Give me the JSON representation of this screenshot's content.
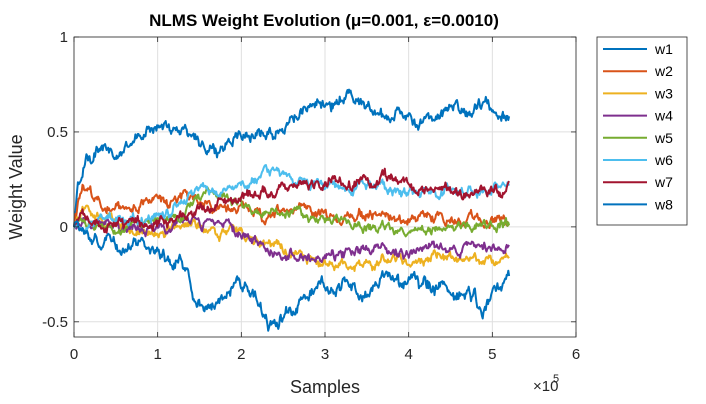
{
  "chart_data": {
    "type": "line",
    "title": "NLMS Weight Evolution (μ=0.001, ε=0.0010)",
    "xlabel": "Samples",
    "ylabel": "Weight Value",
    "x_exponent_label": "×10",
    "x_exponent_power": "5",
    "xlim": [
      0,
      6
    ],
    "ylim": [
      -0.58,
      1
    ],
    "x_ticks": [
      0,
      1,
      2,
      3,
      4,
      5,
      6
    ],
    "x_tick_labels": [
      "0",
      "1",
      "2",
      "3",
      "4",
      "5",
      "6"
    ],
    "y_ticks": [
      -0.5,
      0,
      0.5,
      1
    ],
    "y_tick_labels": [
      "-0.5",
      "0",
      "0.5",
      "1"
    ],
    "grid": true,
    "legend_position": "outside-right-top",
    "series": [
      {
        "name": "w1",
        "color": "#0072BD",
        "noise": 0.022,
        "x": [
          0,
          0.05,
          0.15,
          0.3,
          0.5,
          0.7,
          0.9,
          1.05,
          1.15,
          1.3,
          1.45,
          1.6,
          1.8,
          2.0,
          2.15,
          2.3,
          2.5,
          2.7,
          2.9,
          3.1,
          3.3,
          3.5,
          3.7,
          3.9,
          4.1,
          4.3,
          4.5,
          4.7,
          4.9,
          5.1,
          5.2
        ],
        "values": [
          0.0,
          0.2,
          0.38,
          0.41,
          0.37,
          0.46,
          0.52,
          0.53,
          0.52,
          0.51,
          0.48,
          0.41,
          0.42,
          0.51,
          0.48,
          0.5,
          0.53,
          0.58,
          0.66,
          0.64,
          0.7,
          0.64,
          0.58,
          0.6,
          0.55,
          0.57,
          0.63,
          0.61,
          0.66,
          0.6,
          0.58
        ]
      },
      {
        "name": "w2",
        "color": "#D95319",
        "noise": 0.018,
        "x": [
          0,
          0.1,
          0.2,
          0.35,
          0.5,
          0.7,
          0.9,
          1.1,
          1.3,
          1.5,
          1.7,
          1.9,
          2.1,
          2.3,
          2.5,
          2.7,
          2.9,
          3.1,
          3.4,
          3.7,
          4.0,
          4.3,
          4.6,
          4.9,
          5.2
        ],
        "values": [
          0.0,
          0.2,
          0.17,
          0.12,
          0.11,
          0.1,
          0.14,
          0.12,
          0.16,
          0.14,
          0.1,
          0.08,
          0.1,
          0.04,
          0.09,
          0.1,
          0.06,
          0.05,
          0.07,
          0.05,
          0.04,
          0.05,
          0.04,
          0.05,
          0.04
        ]
      },
      {
        "name": "w3",
        "color": "#EDB120",
        "noise": 0.018,
        "x": [
          0,
          0.1,
          0.2,
          0.35,
          0.5,
          0.7,
          0.9,
          1.1,
          1.3,
          1.5,
          1.7,
          1.9,
          2.1,
          2.3,
          2.5,
          2.7,
          2.9,
          3.1,
          3.4,
          3.7,
          4.0,
          4.3,
          4.6,
          4.9,
          5.2
        ],
        "values": [
          0.0,
          0.09,
          0.06,
          0.03,
          0.0,
          -0.03,
          -0.02,
          0.0,
          0.02,
          -0.02,
          -0.02,
          0.0,
          -0.06,
          -0.1,
          -0.12,
          -0.17,
          -0.18,
          -0.19,
          -0.2,
          -0.18,
          -0.19,
          -0.16,
          -0.18,
          -0.17,
          -0.17
        ]
      },
      {
        "name": "w4",
        "color": "#7E2F8E",
        "noise": 0.018,
        "x": [
          0,
          0.1,
          0.3,
          0.5,
          0.7,
          0.9,
          1.1,
          1.3,
          1.5,
          1.7,
          1.9,
          2.1,
          2.3,
          2.5,
          2.7,
          2.9,
          3.1,
          3.4,
          3.7,
          4.0,
          4.3,
          4.6,
          4.9,
          5.2
        ],
        "values": [
          0.0,
          0.02,
          0.01,
          -0.01,
          0.0,
          -0.02,
          0.0,
          0.03,
          0.02,
          0.0,
          -0.02,
          -0.06,
          -0.1,
          -0.14,
          -0.16,
          -0.17,
          -0.15,
          -0.13,
          -0.12,
          -0.13,
          -0.1,
          -0.11,
          -0.12,
          -0.1
        ]
      },
      {
        "name": "w5",
        "color": "#77AC30",
        "noise": 0.016,
        "x": [
          0,
          0.1,
          0.3,
          0.5,
          0.7,
          0.9,
          1.1,
          1.3,
          1.45,
          1.6,
          1.8,
          2.0,
          2.2,
          2.4,
          2.6,
          2.8,
          3.0,
          3.3,
          3.6,
          3.9,
          4.2,
          4.5,
          4.8,
          5.2
        ],
        "values": [
          0.0,
          0.03,
          0.0,
          -0.02,
          0.0,
          0.02,
          0.04,
          0.07,
          0.14,
          0.18,
          0.16,
          0.12,
          0.08,
          0.06,
          0.09,
          0.05,
          0.03,
          0.02,
          0.0,
          -0.02,
          0.0,
          -0.01,
          0.0,
          0.02
        ]
      },
      {
        "name": "w6",
        "color": "#4DBEEE",
        "noise": 0.018,
        "x": [
          0,
          0.1,
          0.3,
          0.5,
          0.7,
          0.9,
          1.1,
          1.3,
          1.4,
          1.5,
          1.7,
          1.9,
          2.1,
          2.3,
          2.45,
          2.55,
          2.65,
          2.8,
          3.0,
          3.3,
          3.6,
          3.9,
          4.2,
          4.5,
          4.8,
          5.2
        ],
        "values": [
          0.0,
          0.02,
          0.04,
          0.03,
          0.05,
          0.06,
          0.08,
          0.12,
          0.18,
          0.2,
          0.19,
          0.18,
          0.22,
          0.28,
          0.3,
          0.27,
          0.24,
          0.22,
          0.22,
          0.2,
          0.22,
          0.18,
          0.18,
          0.2,
          0.19,
          0.2
        ]
      },
      {
        "name": "w7",
        "color": "#A2142F",
        "noise": 0.02,
        "x": [
          0,
          0.1,
          0.3,
          0.5,
          0.7,
          0.9,
          1.1,
          1.3,
          1.5,
          1.7,
          1.9,
          2.1,
          2.3,
          2.5,
          2.7,
          2.9,
          3.1,
          3.4,
          3.7,
          4.0,
          4.3,
          4.6,
          4.9,
          5.2
        ],
        "values": [
          0.0,
          0.04,
          0.02,
          0.01,
          0.03,
          0.02,
          0.04,
          0.05,
          0.09,
          0.12,
          0.14,
          0.16,
          0.18,
          0.2,
          0.22,
          0.22,
          0.24,
          0.22,
          0.25,
          0.21,
          0.2,
          0.18,
          0.19,
          0.22
        ]
      },
      {
        "name": "w8",
        "color": "#0072BD",
        "noise": 0.024,
        "x": [
          0,
          0.1,
          0.3,
          0.5,
          0.7,
          0.9,
          1.1,
          1.3,
          1.45,
          1.6,
          1.8,
          2.0,
          2.2,
          2.35,
          2.45,
          2.55,
          2.7,
          2.9,
          3.1,
          3.3,
          3.5,
          3.7,
          3.9,
          4.1,
          4.3,
          4.5,
          4.7,
          4.9,
          5.1,
          5.2
        ],
        "values": [
          0.0,
          -0.05,
          -0.08,
          -0.1,
          -0.08,
          -0.12,
          -0.15,
          -0.2,
          -0.35,
          -0.42,
          -0.33,
          -0.3,
          -0.4,
          -0.5,
          -0.52,
          -0.46,
          -0.4,
          -0.32,
          -0.3,
          -0.3,
          -0.35,
          -0.28,
          -0.3,
          -0.28,
          -0.3,
          -0.32,
          -0.35,
          -0.43,
          -0.3,
          -0.29
        ]
      }
    ]
  }
}
